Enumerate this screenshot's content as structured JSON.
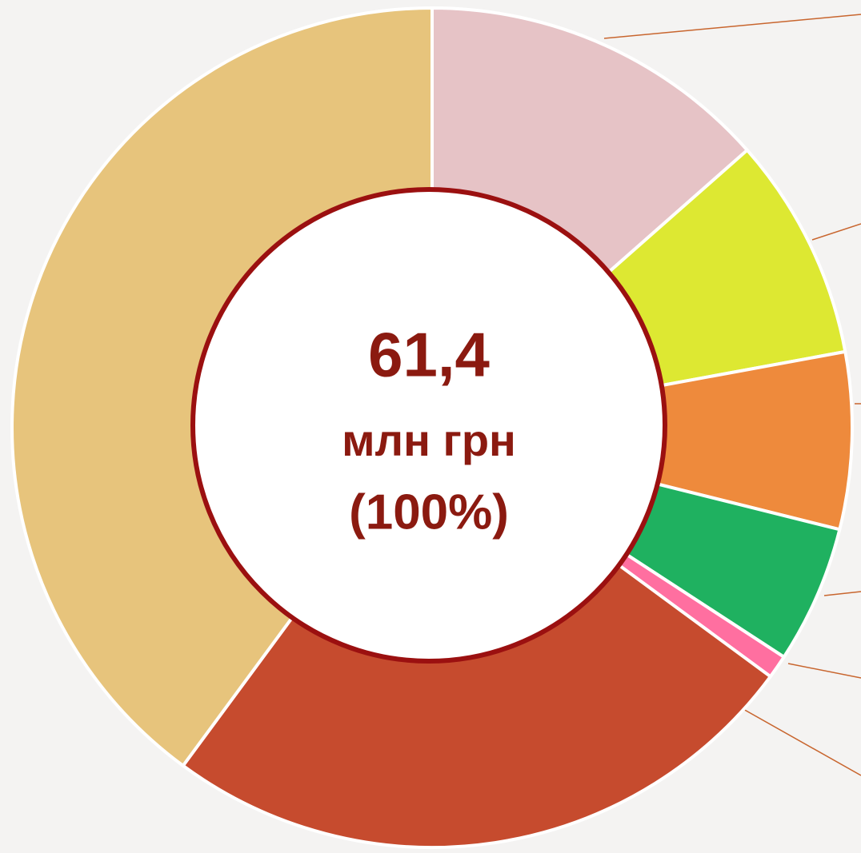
{
  "chart_data": {
    "type": "donut",
    "values": [
      13.5,
      8.6,
      6.8,
      5.3,
      0.9,
      25,
      39.9
    ],
    "colors": [
      "#e6c3c6",
      "#dde832",
      "#ee8a3c",
      "#1fb160",
      "#ff6fa0",
      "#c64b2e",
      "#e7c47c"
    ],
    "center_text": [
      "61,4",
      "млн грн",
      "(100%)"
    ]
  }
}
